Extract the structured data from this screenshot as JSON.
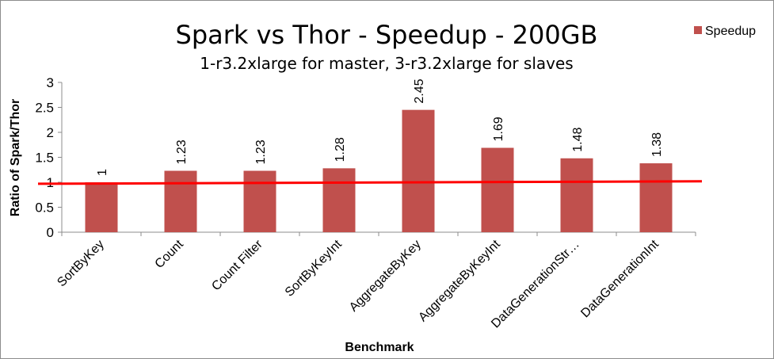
{
  "chart_data": {
    "type": "bar",
    "title": "Spark vs Thor - Speedup - 200GB",
    "subtitle": "1-r3.2xlarge for master, 3-r3.2xlarge for slaves",
    "xlabel": "Benchmark",
    "ylabel": "Ratio of Spark/Thor",
    "categories": [
      "SortByKey",
      "Count",
      "Count Filter",
      "SortByKeyInt",
      "AggregateByKey",
      "AggregateByKeyInt",
      "DataGenerationStr…",
      "DataGenerationInt"
    ],
    "series": [
      {
        "name": "Speedup",
        "values": [
          1,
          1.23,
          1.23,
          1.28,
          2.45,
          1.69,
          1.48,
          1.38
        ],
        "color": "#c0504d"
      }
    ],
    "data_labels": [
      "1",
      "1.23",
      "1.23",
      "1.28",
      "2.45",
      "1.69",
      "1.48",
      "1.38"
    ],
    "ylim": [
      0,
      3
    ],
    "yticks": [
      0,
      0.5,
      1,
      1.5,
      2,
      2.5,
      3
    ],
    "ytick_labels": [
      "0",
      "0.5",
      "1",
      "1.5",
      "2",
      "2.5",
      "3"
    ],
    "grid": false,
    "legend_position": "top-right",
    "reference_line": {
      "y_start": 0.97,
      "y_end": 1.02,
      "color": "#ff0000"
    }
  }
}
